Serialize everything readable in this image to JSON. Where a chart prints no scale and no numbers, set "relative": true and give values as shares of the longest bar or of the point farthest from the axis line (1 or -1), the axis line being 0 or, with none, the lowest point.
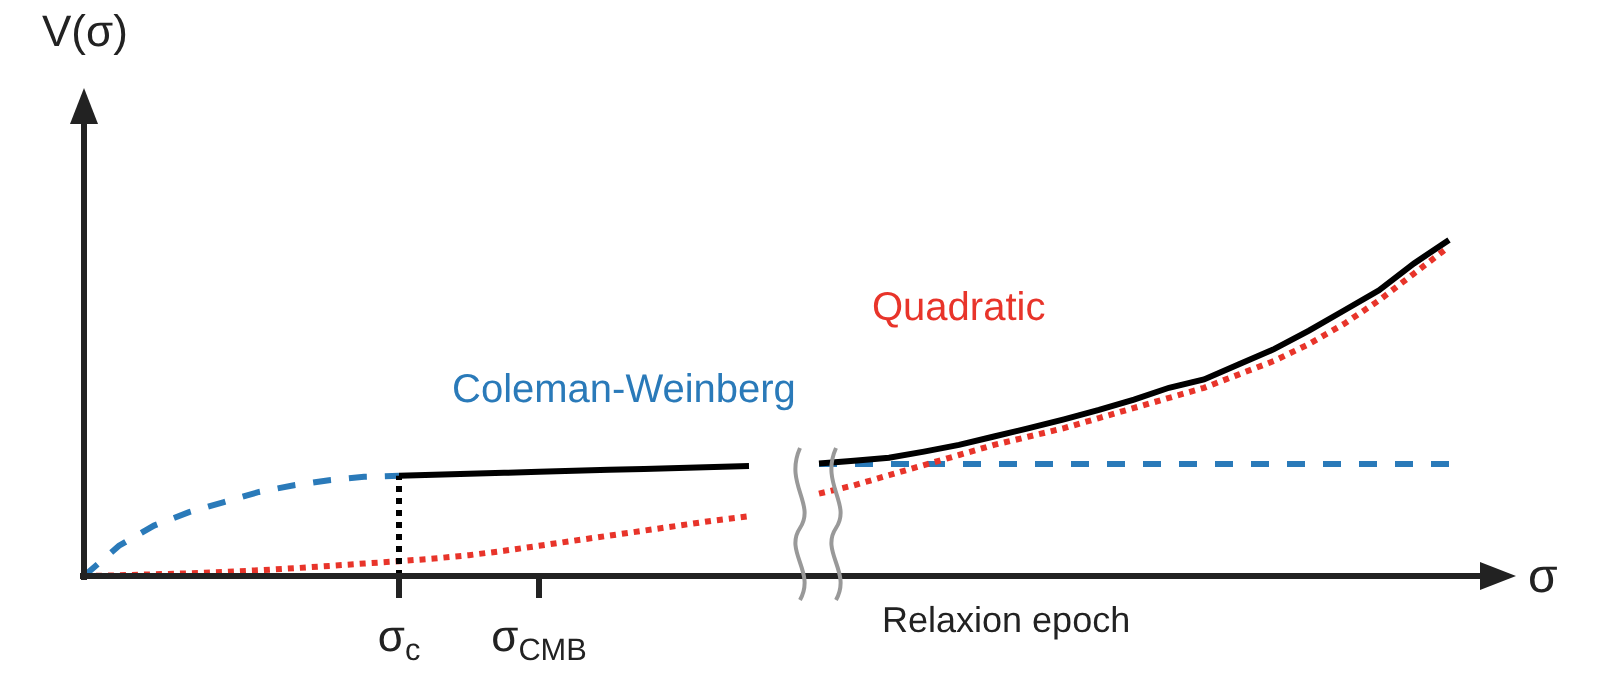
{
  "chart_data": {
    "type": "line",
    "relative": true,
    "xlabel": "σ",
    "ylabel": "V(σ)",
    "categories": [
      null,
      null,
      null,
      null,
      null,
      null,
      null,
      null,
      null,
      "σ$_{c}$",
      null,
      null,
      null,
      "σ$_{CMB}$",
      null,
      null,
      null,
      null,
      null,
      null,
      null,
      null,
      null,
      null,
      null,
      null,
      null,
      null,
      null,
      null,
      null,
      null,
      null,
      null,
      null,
      null,
      null,
      null,
      null,
      null
    ],
    "tick_labels": "x",
    "legend": false,
    "marker": "none",
    "annotations": [
      "Relaxion epoch"
    ],
    "series": [
      {
        "name": "Coleman-Weinberg",
        "color": "#2a7ab9",
        "line_style": "dashed",
        "values": [
          0,
          0.09,
          0.15,
          0.19,
          0.22,
          0.25,
          0.27,
          0.285,
          0.295,
          0.298,
          null,
          null,
          null,
          null,
          null,
          null,
          null,
          null,
          null,
          null,
          null,
          0.333,
          0.333,
          0.333,
          0.333,
          0.333,
          0.333,
          0.333,
          0.333,
          0.333,
          0.333,
          0.333,
          0.333,
          0.333,
          0.333,
          0.333,
          0.333,
          0.333,
          0.333,
          0.333
        ]
      },
      {
        "name": "Quadratic",
        "color": "#e8342a",
        "line_style": "dotted",
        "values": [
          0,
          0.002,
          0.005,
          0.008,
          0.012,
          0.017,
          0.023,
          0.03,
          0.037,
          0.044,
          0.052,
          0.062,
          0.075,
          0.09,
          0.105,
          0.12,
          0.135,
          0.15,
          0.165,
          0.178,
          null,
          0.245,
          0.27,
          0.3,
          0.33,
          0.36,
          0.39,
          0.415,
          0.44,
          0.47,
          0.5,
          0.53,
          0.56,
          0.6,
          0.64,
          0.69,
          0.75,
          0.82,
          0.9,
          0.98
        ]
      },
      {
        "color": "#000000",
        "line_style": "solid",
        "values": [
          null,
          null,
          null,
          null,
          null,
          null,
          null,
          null,
          null,
          0.298,
          0.301,
          0.304,
          0.307,
          0.31,
          0.313,
          0.316,
          0.318,
          0.321,
          0.324,
          0.327,
          null,
          0.335,
          0.343,
          0.352,
          0.37,
          0.39,
          0.415,
          0.44,
          0.466,
          0.494,
          0.525,
          0.56,
          0.585,
          0.63,
          0.675,
          0.73,
          0.79,
          0.85,
          0.93,
          1.0
        ]
      },
      {
        "color": "#000000",
        "line_style": "dotted",
        "x": [
          "σ$_{c}$",
          "σ$_{c}$"
        ],
        "values": [
          0,
          0.298
        ]
      }
    ]
  }
}
